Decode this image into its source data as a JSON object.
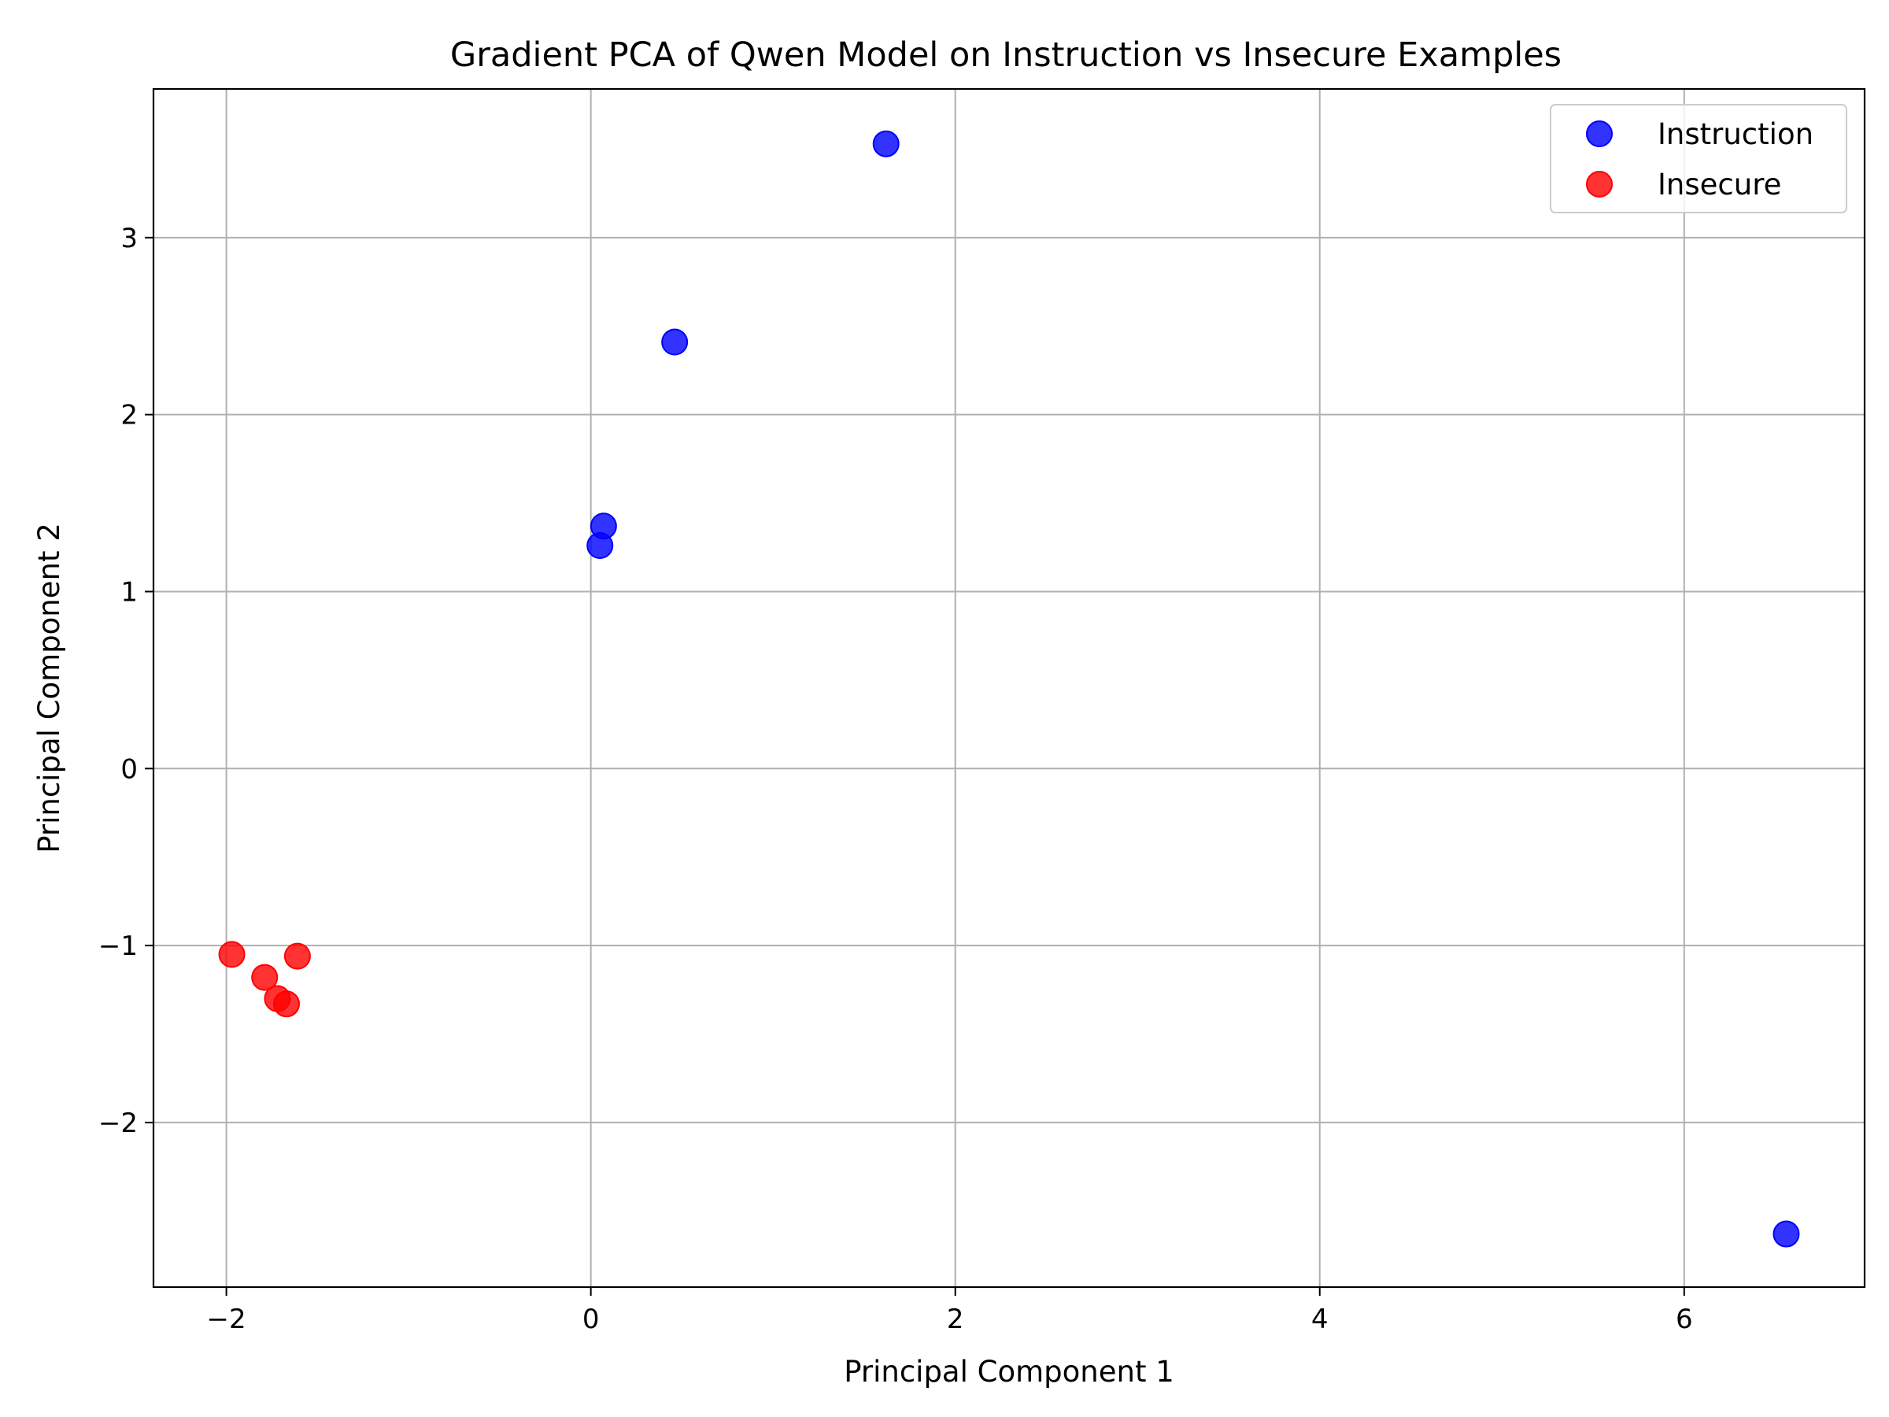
{
  "chart_data": {
    "type": "scatter",
    "title": "Gradient PCA of Qwen Model on Instruction vs Insecure Examples",
    "xlabel": "Principal Component 1",
    "ylabel": "Principal Component 2",
    "xlim": [
      -2.4,
      6.99
    ],
    "ylim": [
      -2.93,
      3.84
    ],
    "xticks": [
      -2,
      0,
      2,
      4,
      6
    ],
    "yticks": [
      -2,
      -1,
      0,
      1,
      2,
      3
    ],
    "xtick_labels": [
      "−2",
      "0",
      "2",
      "4",
      "6"
    ],
    "ytick_labels": [
      "−2",
      "−1",
      "0",
      "1",
      "2",
      "3"
    ],
    "grid": true,
    "legend_position": "top-right",
    "series": [
      {
        "name": "Instruction",
        "color": "#0000ff",
        "points": [
          {
            "x": 1.62,
            "y": 3.53
          },
          {
            "x": 0.46,
            "y": 2.41
          },
          {
            "x": 0.07,
            "y": 1.37
          },
          {
            "x": 0.05,
            "y": 1.26
          },
          {
            "x": 6.56,
            "y": -2.63
          }
        ]
      },
      {
        "name": "Insecure",
        "color": "#ff0000",
        "points": [
          {
            "x": -1.97,
            "y": -1.05
          },
          {
            "x": -1.79,
            "y": -1.18
          },
          {
            "x": -1.72,
            "y": -1.3
          },
          {
            "x": -1.67,
            "y": -1.33
          },
          {
            "x": -1.61,
            "y": -1.06
          }
        ]
      }
    ]
  }
}
